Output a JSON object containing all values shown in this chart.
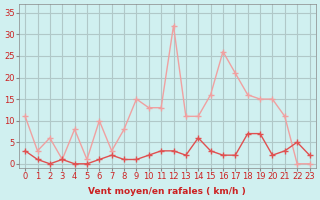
{
  "hours": [
    0,
    1,
    2,
    3,
    4,
    5,
    6,
    7,
    8,
    9,
    10,
    11,
    12,
    13,
    14,
    15,
    16,
    17,
    18,
    19,
    20,
    21,
    22,
    23
  ],
  "wind_avg": [
    3,
    1,
    0,
    1,
    0,
    0,
    1,
    2,
    1,
    1,
    2,
    3,
    3,
    2,
    6,
    3,
    2,
    2,
    7,
    7,
    2,
    3,
    5,
    2
  ],
  "wind_gust": [
    11,
    3,
    6,
    1,
    8,
    1,
    10,
    3,
    8,
    15,
    13,
    13,
    32,
    11,
    11,
    16,
    26,
    21,
    16,
    15,
    15,
    11,
    0,
    0
  ],
  "line_color_avg": "#e05050",
  "line_color_gust": "#f0a0a0",
  "bg_color": "#d0f0f0",
  "grid_color": "#b0c8c8",
  "axis_color": "#cc2222",
  "xlabel": "Vent moyen/en rafales ( km/h )",
  "yticks": [
    0,
    5,
    10,
    15,
    20,
    25,
    30,
    35
  ],
  "ylim": [
    -1,
    37
  ],
  "xlim": [
    -0.5,
    23.5
  ]
}
